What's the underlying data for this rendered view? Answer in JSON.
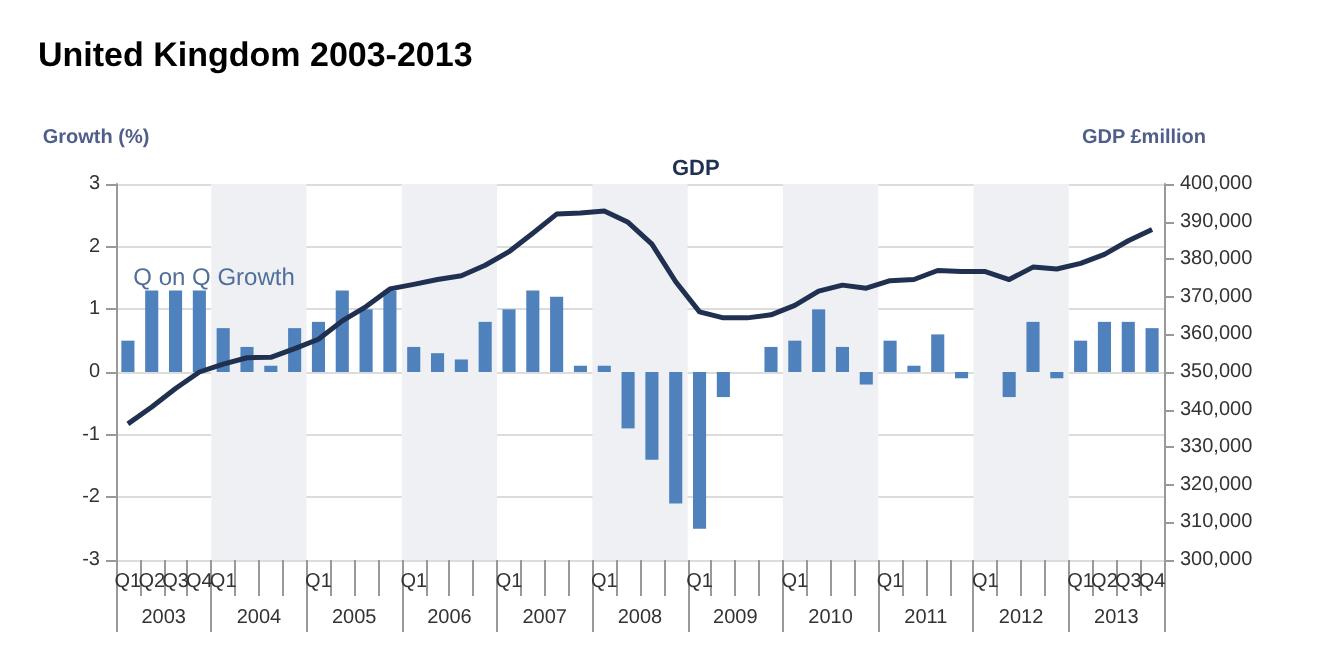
{
  "chart_data": {
    "type": "bar",
    "title": "United Kingdom 2003-2013",
    "categories": [
      "Q1",
      "Q2",
      "Q3",
      "Q4",
      "Q1",
      null,
      null,
      null,
      "Q1",
      null,
      null,
      null,
      "Q1",
      null,
      null,
      null,
      "Q1",
      null,
      null,
      null,
      "Q1",
      null,
      null,
      null,
      "Q1",
      null,
      null,
      null,
      "Q1",
      null,
      null,
      null,
      "Q1",
      null,
      null,
      null,
      "Q1",
      null,
      null,
      null,
      "Q1",
      "Q2",
      "Q3",
      "Q4"
    ],
    "annotations": [
      "2003",
      "2004",
      "2005",
      "2006",
      "2007",
      "2008",
      "2009",
      "2010",
      "2011",
      "2012",
      "2013"
    ],
    "ylabel": "Growth (%)",
    "y2label": "GDP £million",
    "ylim": [
      -3,
      3
    ],
    "yticks": [
      -3,
      -2,
      -1,
      0,
      1,
      2,
      3
    ],
    "y2lim": [
      300000,
      400000
    ],
    "y2ticks": [
      {
        "value": 300000,
        "label": "300,000"
      },
      {
        "value": 310000,
        "label": "310,000"
      },
      {
        "value": 320000,
        "label": "320,000"
      },
      {
        "value": 330000,
        "label": "330,000"
      },
      {
        "value": 340000,
        "label": "340,000"
      },
      {
        "value": 350000,
        "label": "350,000"
      },
      {
        "value": 360000,
        "label": "360,000"
      },
      {
        "value": 370000,
        "label": "370,000"
      },
      {
        "value": 380000,
        "label": "380,000"
      },
      {
        "value": 390000,
        "label": "390,000"
      },
      {
        "value": 400000,
        "label": "400,000"
      }
    ],
    "grid": "y",
    "legend": false,
    "series": [
      {
        "name": "Q on Q Growth",
        "color": "#4f81bd",
        "values": [
          0.5,
          1.3,
          1.3,
          1.3,
          0.7,
          0.4,
          0.1,
          0.7,
          0.8,
          1.3,
          1.0,
          1.3,
          0.4,
          0.3,
          0.2,
          0.8,
          1.0,
          1.3,
          1.2,
          0.1,
          0.1,
          -0.9,
          -1.4,
          -2.1,
          -2.5,
          -0.4,
          0,
          0.4,
          0.5,
          1.0,
          0.4,
          -0.2,
          0.5,
          0.1,
          0.6,
          -0.1,
          0,
          -0.4,
          0.8,
          -0.1,
          0.5,
          0.8,
          0.8,
          0.7
        ]
      },
      {
        "name": "GDP",
        "type": "line",
        "axis": "y2",
        "color": "#1f3050",
        "values": [
          336200,
          340700,
          345600,
          350000,
          352100,
          353800,
          353900,
          356200,
          358700,
          363600,
          367400,
          372100,
          373300,
          374600,
          375600,
          378400,
          382000,
          386900,
          392000,
          392300,
          392800,
          389800,
          384000,
          374000,
          366000,
          364400,
          364400,
          365200,
          367700,
          371500,
          373100,
          372300,
          374300,
          374600,
          377000,
          376700,
          376700,
          374600,
          377900,
          377400,
          378900,
          381300,
          384900,
          387900
        ]
      }
    ]
  }
}
